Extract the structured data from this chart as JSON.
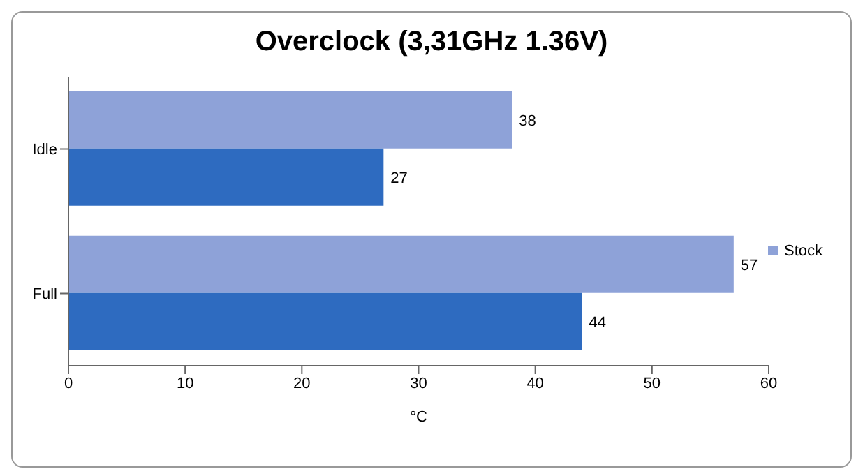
{
  "chart_data": {
    "type": "bar",
    "orientation": "horizontal",
    "title": "Overclock (3,31GHz 1.36V)",
    "xlabel": "°C",
    "categories": [
      "Idle",
      "Full"
    ],
    "series": [
      {
        "name": "Stock",
        "color": "#8ea2d8",
        "values": [
          38,
          57
        ]
      },
      {
        "color": "#2e6bc0",
        "values": [
          27,
          44
        ]
      }
    ],
    "xlim": [
      0,
      60
    ],
    "xticks": [
      0,
      10,
      20,
      30,
      40,
      50,
      60
    ],
    "data_labels": true,
    "legend": "right",
    "grid": false
  }
}
